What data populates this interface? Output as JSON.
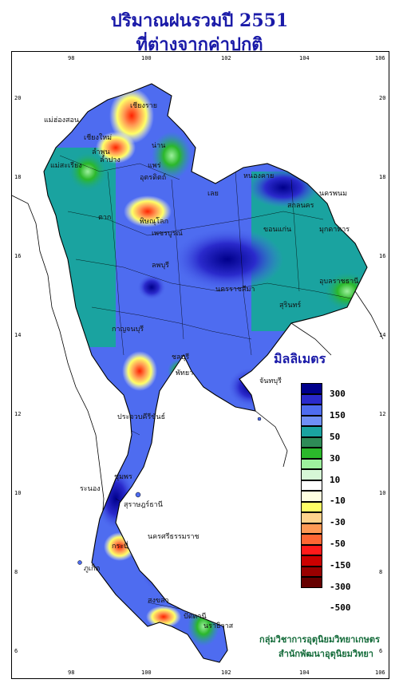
{
  "title": {
    "line1": "ปริมาณฝนรวมปี  2551",
    "line2": "ที่ต่างจากค่าปกติ"
  },
  "axes": {
    "x_ticks_top": [
      "98",
      "100",
      "102",
      "104",
      "106"
    ],
    "x_ticks_bottom": [
      "98",
      "100",
      "102",
      "104",
      "106"
    ],
    "y_ticks_left": [
      "20",
      "18",
      "16",
      "14",
      "12",
      "10",
      "8",
      "6"
    ],
    "y_ticks_right": [
      "20",
      "18",
      "16",
      "14",
      "12",
      "10",
      "8",
      "6"
    ]
  },
  "legend": {
    "title": "มิลลิเมตร",
    "colors": [
      "#00008b",
      "#2a2acc",
      "#4e6cf0",
      "#6f8ff6",
      "#1aa3a0",
      "#2e8b57",
      "#2bb82b",
      "#9df09d",
      "#d6f7d6",
      "#ffffff",
      "#ffffe0",
      "#ffff66",
      "#ffd28c",
      "#ff9955",
      "#ff6633",
      "#ff1a1a",
      "#cc0000",
      "#990000",
      "#660000"
    ],
    "labels": [
      "300",
      "150",
      "50",
      "30",
      "10",
      "-10",
      "-30",
      "-50",
      "-150",
      "-300",
      "-500"
    ]
  },
  "places": [
    "เชียงราย",
    "แม่ฮ่องสอน",
    "เชียงใหม่",
    "น่าน",
    "ลำพูน",
    "ลำปาง",
    "แพร่",
    "แม่สะเรียง",
    "อุตรดิตถ์",
    "ตาก",
    "พิษณุโลก",
    "เพชรบูรณ์",
    "เลย",
    "หนองคาย",
    "นครพนม",
    "สกลนคร",
    "ขอนแก่น",
    "มุกดาหาร",
    "อุบลราชธานี",
    "ลพบุรี",
    "นครราชสีมา",
    "สุรินทร์",
    "กาญจนบุรี",
    "ชลบุรี",
    "ประจวบคีรีขันธ์",
    "ชุมพร",
    "ระนอง",
    "สุราษฎร์ธานี",
    "นครศรีธรรมราช",
    "ภูเก็ต",
    "กระบี่",
    "สงขลา",
    "ปัตตานี",
    "นราธิวาส",
    "จันทบุรี",
    "พัทยา"
  ],
  "credits": {
    "line1": "กลุ่มวิชาการอุตุนิยมวิทยาเกษตร",
    "line2": "สำนักพัฒนาอุตุนิยมวิทยา"
  }
}
